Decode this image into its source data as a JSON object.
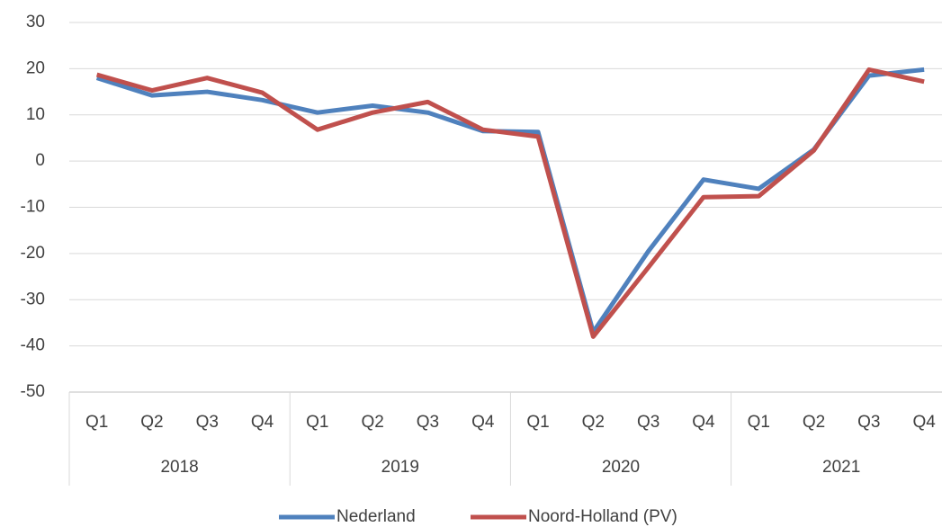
{
  "chart_data": {
    "type": "line",
    "categories": [
      "Q1",
      "Q2",
      "Q3",
      "Q4",
      "Q1",
      "Q2",
      "Q3",
      "Q4",
      "Q1",
      "Q2",
      "Q3",
      "Q4",
      "Q1",
      "Q2",
      "Q3",
      "Q4"
    ],
    "x_groups": [
      "2018",
      "2019",
      "2020",
      "2021"
    ],
    "series": [
      {
        "name": "Nederland",
        "color": "#4f81bd",
        "values": [
          18,
          14.2,
          15,
          13.2,
          10.5,
          12,
          10.5,
          6.5,
          6.3,
          -37,
          -19.5,
          -4,
          -6,
          2.5,
          18.5,
          19.8
        ]
      },
      {
        "name": "Noord-Holland (PV)",
        "color": "#c0504d",
        "values": [
          18.7,
          15.3,
          18,
          14.8,
          6.8,
          10.5,
          12.8,
          6.8,
          5.3,
          -38,
          -23,
          -7.8,
          -7.6,
          2.3,
          19.8,
          17.2
        ]
      }
    ],
    "ylim": [
      -50,
      30
    ],
    "yticks": [
      -50,
      -40,
      -30,
      -20,
      -10,
      0,
      10,
      20,
      30
    ],
    "grid": true,
    "legend": "bottom"
  }
}
